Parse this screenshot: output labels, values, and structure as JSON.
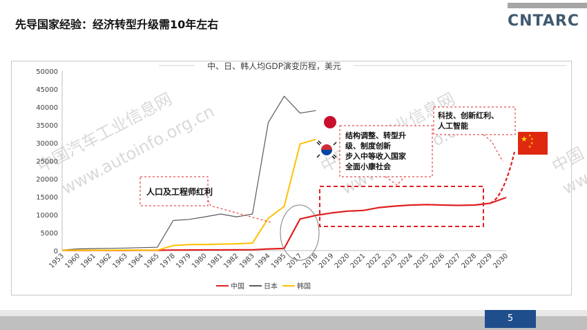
{
  "page": {
    "title": "先导国家经验：经济转型升级需10年左右",
    "logo": "CNTARC",
    "page_number": "5"
  },
  "watermark": {
    "text1": "中国汽车工业信息网",
    "url1": "www.autoinfo.org.cn",
    "text2": "中国汽车工业信息网",
    "url2": "www.autoinfo.org.cn",
    "text3": "中国",
    "url3": "www."
  },
  "colors": {
    "china": "#e02020",
    "japan": "#595959",
    "korea": "#ffc000",
    "annotation": "#e02020"
  },
  "annotations": {
    "demographic": "人口及工程师红利",
    "structure_lines": [
      "结构调整、转型升",
      "级、制度创新",
      "步入中等收入国家",
      "全面小康社会"
    ],
    "innovation_lines": [
      "科技、创新红利、",
      "人工智能"
    ]
  },
  "chart_data": {
    "type": "line",
    "title": "中、日、韩人均GDP演变历程，美元",
    "categories": [
      "1953",
      "1960",
      "1961",
      "1962",
      "1963",
      "1964",
      "1965",
      "1978",
      "1979",
      "1980",
      "1981",
      "1982",
      "1983",
      "1994",
      "1995",
      "2017",
      "2018",
      "2019",
      "2020",
      "2021",
      "2022",
      "2023",
      "2024",
      "2025",
      "2026",
      "2027",
      "2028",
      "2029",
      "2030"
    ],
    "ylim": [
      0,
      50000
    ],
    "yticks": [
      0,
      5000,
      10000,
      15000,
      20000,
      25000,
      30000,
      35000,
      40000,
      45000,
      50000
    ],
    "ytick_labels": [
      "0",
      "5000",
      "10000",
      "15000",
      "20000",
      "25000",
      "30000",
      "35000",
      "40000",
      "45000",
      "50000"
    ],
    "grid": false,
    "legend_position": "bottom",
    "series": [
      {
        "name": "中国",
        "color": "#e02020",
        "values": [
          50,
          80,
          80,
          70,
          80,
          90,
          100,
          150,
          180,
          190,
          200,
          210,
          230,
          470,
          600,
          8800,
          9800,
          10500,
          11000,
          11200,
          12000,
          12400,
          12700,
          12800,
          12700,
          12600,
          12700,
          13200,
          14800
        ]
      },
      {
        "name": "日本",
        "color": "#595959",
        "values": [
          150,
          480,
          560,
          630,
          720,
          830,
          920,
          8400,
          8700,
          9400,
          10200,
          9400,
          10200,
          35700,
          43000,
          38300,
          39000,
          null,
          null,
          null,
          null,
          null,
          null,
          null,
          null,
          null,
          null,
          null,
          null
        ]
      },
      {
        "name": "韩国",
        "color": "#ffc000",
        "values": [
          70,
          150,
          90,
          110,
          140,
          110,
          110,
          1400,
          1700,
          1700,
          1800,
          1900,
          2100,
          9000,
          12300,
          29700,
          31000,
          null,
          null,
          null,
          null,
          null,
          null,
          null,
          null,
          null,
          null,
          null,
          null
        ]
      }
    ],
    "projection_end": {
      "category": "2030",
      "value": 27500
    }
  }
}
